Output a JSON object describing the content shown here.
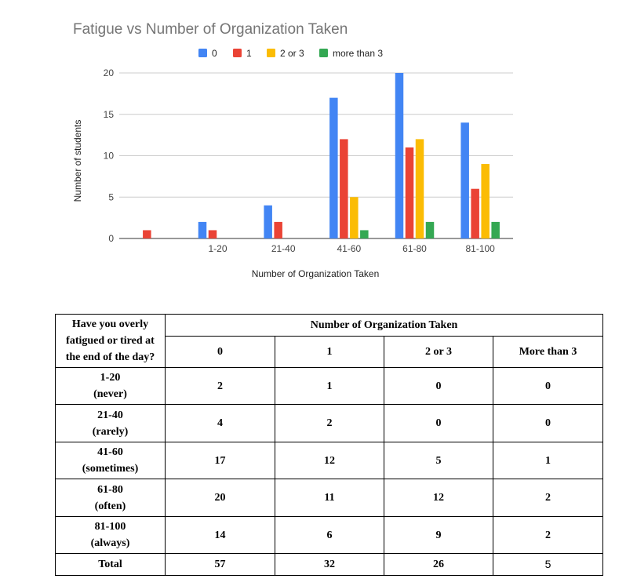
{
  "chart_data": {
    "type": "bar",
    "title": "Fatigue vs Number of Organization Taken",
    "xlabel": "Number of Organization Taken",
    "ylabel": "Number of students",
    "categories": [
      "",
      "1-20",
      "21-40",
      "41-60",
      "61-80",
      "81-100"
    ],
    "ylim": [
      0,
      20
    ],
    "yticks": [
      0,
      5,
      10,
      15,
      20
    ],
    "grid": true,
    "legend_position": "top",
    "series": [
      {
        "name": "0",
        "color": "#4285f4",
        "values": [
          0,
          2,
          4,
          17,
          20,
          14
        ]
      },
      {
        "name": "1",
        "color": "#ea4335",
        "values": [
          1,
          1,
          2,
          12,
          11,
          6
        ]
      },
      {
        "name": "2 or 3",
        "color": "#fbbc04",
        "values": [
          0,
          0,
          0,
          5,
          12,
          9
        ]
      },
      {
        "name": "more than 3",
        "color": "#34a853",
        "values": [
          0,
          0,
          0,
          1,
          2,
          2
        ]
      }
    ]
  },
  "table": {
    "corner_header": "Have you overly fatigued or tired at the end of the day?",
    "group_header": "Number of Organization Taken",
    "columns": [
      "0",
      "1",
      "2 or 3",
      "More than 3"
    ],
    "rows": [
      {
        "range": "1-20",
        "desc": "(never)",
        "values": [
          "2",
          "1",
          "0",
          "0"
        ]
      },
      {
        "range": "21-40",
        "desc": "(rarely)",
        "values": [
          "4",
          "2",
          "0",
          "0"
        ]
      },
      {
        "range": "41-60",
        "desc": "(sometimes)",
        "values": [
          "17",
          "12",
          "5",
          "1"
        ]
      },
      {
        "range": "61-80",
        "desc": "(often)",
        "values": [
          "20",
          "11",
          "12",
          "2"
        ]
      },
      {
        "range": "81-100",
        "desc": "(always)",
        "values": [
          "14",
          "6",
          "9",
          "2"
        ]
      }
    ],
    "total": {
      "label": "Total",
      "values": [
        "57",
        "32",
        "26",
        "5"
      ]
    }
  }
}
